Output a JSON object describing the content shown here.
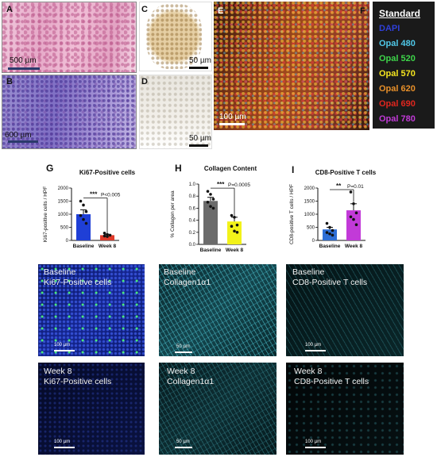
{
  "panels": {
    "A": {
      "letter": "A",
      "scale": "500 µm"
    },
    "B": {
      "letter": "B",
      "scale": "600 µm"
    },
    "C": {
      "letter": "C",
      "scale": "50 µm"
    },
    "D": {
      "letter": "D",
      "scale": "50 µm"
    },
    "E": {
      "letter": "E",
      "scale": "100 µm"
    },
    "F": {
      "letter": "F"
    }
  },
  "legend": {
    "title": "Standard",
    "items": [
      {
        "label": "DAPI",
        "color": "#2f3fd8"
      },
      {
        "label": "Opal 480",
        "color": "#4fc8e8"
      },
      {
        "label": "Opal 520",
        "color": "#3ed64a"
      },
      {
        "label": "Opal 570",
        "color": "#f5e51f"
      },
      {
        "label": "Opal 620",
        "color": "#e8902a"
      },
      {
        "label": "Opal 690",
        "color": "#e0261e"
      },
      {
        "label": "Opal 780",
        "color": "#c23ad8"
      }
    ]
  },
  "charts": {
    "G": {
      "letter": "G",
      "title": "Ki67-Positive cells",
      "ylabel": "Ki67-positive cells / HPF",
      "pval": "P<0.005",
      "stars": "***"
    },
    "H": {
      "letter": "H",
      "title": "Collagen Content",
      "ylabel": "% Collagen per area",
      "pval": "P=0.0005",
      "stars": "***"
    },
    "I": {
      "letter": "I",
      "title": "CD8-Positive T cells",
      "ylabel": "CD8-positive T cells / HPF",
      "pval": "P=0.01",
      "stars": "**"
    }
  },
  "chart_data": [
    {
      "type": "bar",
      "title": "Ki67-Positive cells",
      "ylabel": "Ki67-positive cells / HPF",
      "categories": [
        "Baseline",
        "Week 8"
      ],
      "values": [
        1000,
        200
      ],
      "errors": [
        170,
        30
      ],
      "colors": [
        "#1f3fd6",
        "#e03a2a"
      ],
      "ylim": [
        0,
        2000
      ],
      "yticks": [
        0,
        500,
        1000,
        1500,
        2000
      ],
      "points": [
        [
          1500,
          1350,
          1100,
          950,
          800,
          650
        ],
        [
          280,
          230,
          200,
          170,
          150
        ]
      ]
    },
    {
      "type": "bar",
      "title": "Collagen Content",
      "ylabel": "% Collagen per area",
      "categories": [
        "Baseline",
        "Week 8"
      ],
      "values": [
        0.72,
        0.38
      ],
      "errors": [
        0.06,
        0.07
      ],
      "colors": [
        "#6b6b6b",
        "#f2f21a"
      ],
      "ylim": [
        0,
        1.0
      ],
      "yticks": [
        0.0,
        0.2,
        0.4,
        0.6,
        0.8,
        1.0
      ],
      "points": [
        [
          0.88,
          0.83,
          0.75,
          0.7,
          0.63,
          0.6
        ],
        [
          0.48,
          0.45,
          0.32,
          0.3,
          0.22,
          0.2
        ]
      ]
    },
    {
      "type": "bar",
      "title": "CD8-Positive T cells",
      "ylabel": "CD8-positive T cells / HPF",
      "categories": [
        "Baseline",
        "Week 8"
      ],
      "values": [
        420,
        1150
      ],
      "errors": [
        80,
        250
      ],
      "colors": [
        "#2f6fd6",
        "#c23ad8"
      ],
      "ylim": [
        0,
        2000
      ],
      "yticks": [
        0,
        500,
        1000,
        1500,
        2000
      ],
      "points": [
        [
          650,
          500,
          380,
          300,
          250,
          200
        ],
        [
          1850,
          1400,
          1050,
          900,
          800,
          600
        ]
      ]
    }
  ],
  "micrographs": {
    "row1": [
      {
        "line1": "Baseline",
        "line2": "Ki67-Positive cells",
        "scale": "100 µm"
      },
      {
        "line1": "Baseline",
        "line2": "Collagen1α1",
        "scale": "50 µm"
      },
      {
        "line1": "Baseline",
        "line2": "CD8-Positive T cells",
        "scale": "100 µm"
      }
    ],
    "row2": [
      {
        "line1": "Week 8",
        "line2": "Ki67-Positive cells",
        "scale": "100 µm"
      },
      {
        "line1": "Week 8",
        "line2": "Collagen1α1",
        "scale": "50 µm"
      },
      {
        "line1": "Week 8",
        "line2": "CD8-Positive T cells",
        "scale": "100 µm"
      }
    ]
  }
}
